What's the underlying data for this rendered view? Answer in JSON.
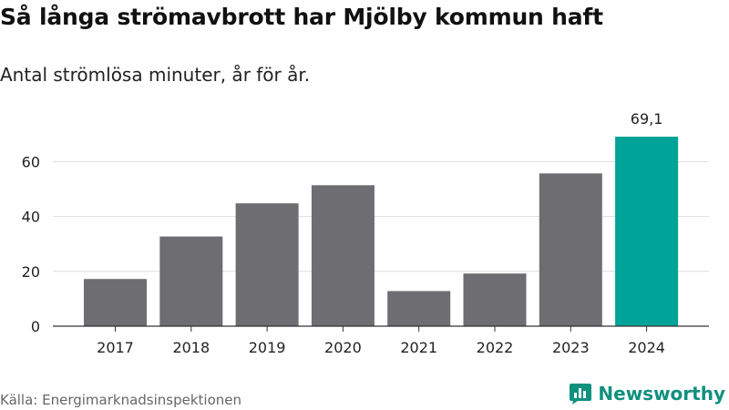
{
  "title": "Så långa strömavbrott har Mjölby kommun haft",
  "subtitle": "Antal strömlösa minuter, år för år.",
  "source": "Källa: Energimarknadsinspektionen",
  "brand": {
    "name": "Newsworthy",
    "icon": "bar-chart-logo-icon",
    "color": "#10907f"
  },
  "colors": {
    "bar": "#6e6d72",
    "highlight": "#00a398",
    "grid": "#dddddd",
    "axis": "#333333"
  },
  "chart_data": {
    "type": "bar",
    "categories": [
      "2017",
      "2018",
      "2019",
      "2020",
      "2021",
      "2022",
      "2023",
      "2024"
    ],
    "values": [
      17.2,
      32.7,
      44.8,
      51.4,
      12.8,
      19.2,
      55.7,
      69.1
    ],
    "highlight_index": 7,
    "data_labels": [
      null,
      null,
      null,
      null,
      null,
      null,
      null,
      "69,1"
    ],
    "yticks": [
      0,
      20,
      40,
      60
    ],
    "ylim": [
      0,
      70
    ],
    "grid": true,
    "legend": "none"
  }
}
